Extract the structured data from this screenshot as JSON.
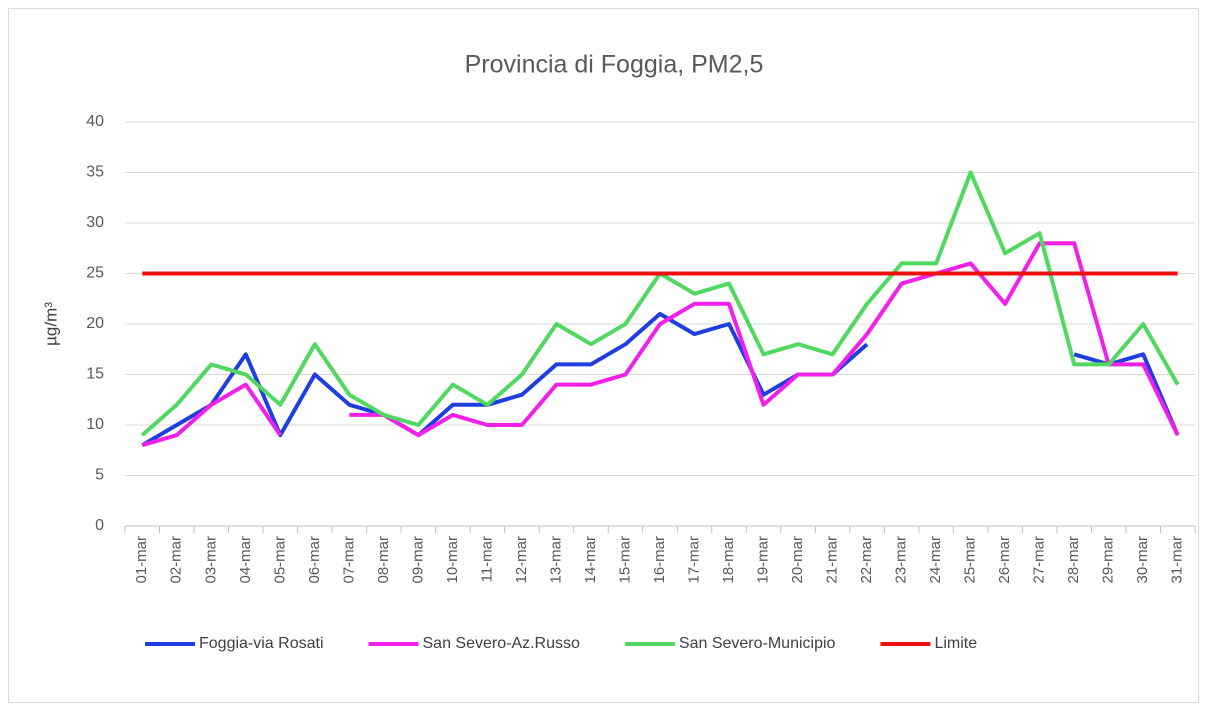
{
  "chart_data": {
    "type": "line",
    "title": "Provincia di Foggia, PM2,5",
    "y_label": "µg/m³",
    "categories": [
      "01-mar",
      "02-mar",
      "03-mar",
      "04-mar",
      "05-mar",
      "06-mar",
      "07-mar",
      "08-mar",
      "09-mar",
      "10-mar",
      "11-mar",
      "12-mar",
      "13-mar",
      "14-mar",
      "15-mar",
      "16-mar",
      "17-mar",
      "18-mar",
      "19-mar",
      "20-mar",
      "21-mar",
      "22-mar",
      "23-mar",
      "24-mar",
      "25-mar",
      "26-mar",
      "27-mar",
      "28-mar",
      "29-mar",
      "30-mar",
      "31-mar"
    ],
    "series": [
      {
        "name": "Foggia-via Rosati",
        "color": "#1f3ee0",
        "values": [
          8,
          10,
          12,
          17,
          9,
          15,
          12,
          11,
          9,
          12,
          12,
          13,
          16,
          16,
          18,
          21,
          19,
          20,
          13,
          15,
          15,
          18,
          null,
          null,
          null,
          null,
          null,
          17,
          16,
          17,
          9
        ]
      },
      {
        "name": "San Severo-Az.Russo",
        "color": "#f020e8",
        "values": [
          8,
          9,
          12,
          14,
          9,
          null,
          11,
          11,
          9,
          11,
          10,
          10,
          14,
          14,
          15,
          20,
          22,
          22,
          12,
          15,
          15,
          19,
          24,
          25,
          26,
          22,
          28,
          28,
          16,
          16,
          9
        ]
      },
      {
        "name": "San Severo-Municipio",
        "color": "#50d860",
        "values": [
          9,
          12,
          16,
          15,
          12,
          18,
          13,
          11,
          10,
          14,
          12,
          15,
          20,
          18,
          20,
          25,
          23,
          24,
          17,
          18,
          17,
          22,
          26,
          26,
          35,
          27,
          29,
          16,
          16,
          20,
          14
        ]
      },
      {
        "name": "Limite",
        "color": "#ee1010",
        "values": [
          25,
          25,
          25,
          25,
          25,
          25,
          25,
          25,
          25,
          25,
          25,
          25,
          25,
          25,
          25,
          25,
          25,
          25,
          25,
          25,
          25,
          25,
          25,
          25,
          25,
          25,
          25,
          25,
          25,
          25,
          25
        ]
      }
    ],
    "ylim": [
      0,
      40
    ],
    "yticks": [
      0,
      5,
      10,
      15,
      20,
      25,
      30,
      35,
      40
    ],
    "grid": true,
    "legend": "bottom"
  }
}
